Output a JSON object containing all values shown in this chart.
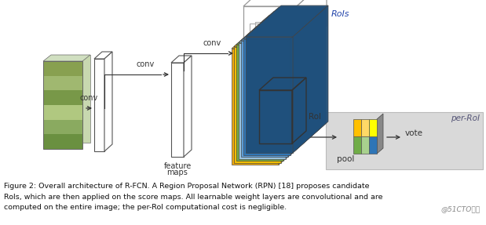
{
  "bg_color": "#ffffff",
  "caption_lines": [
    "Figure 2: Overall architecture of R-FCN. A Region Proposal Network (RPN) [18] proposes candidate",
    "RoIs, which are then applied on the score maps. All learnable weight layers are convolutional and are",
    "computed on the entire image; the per-RoI computational cost is negligible."
  ],
  "watermark": "@51CTO博客",
  "fig_width": 6.19,
  "fig_height": 2.87,
  "dpi": 100,
  "layer_colors": [
    "#f0a500",
    "#f0c000",
    "#70ad47",
    "#9dc3e6",
    "#5b9bd5",
    "#2e75b6",
    "#1f4e79"
  ],
  "rpn_color": "#aaaaaa",
  "peroi_bg": "#d9d9d9"
}
